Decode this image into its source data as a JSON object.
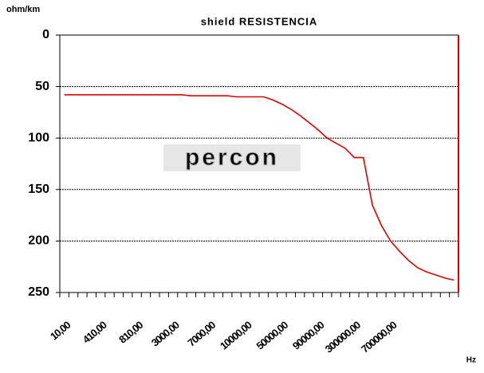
{
  "chart_data": {
    "type": "line",
    "title": "shield RESISTENCIA",
    "y_label": "ohm/km",
    "x_label": "Hz",
    "watermark": "percon",
    "categories": [
      "10,00",
      null,
      null,
      null,
      "410,00",
      null,
      null,
      null,
      "810,00",
      null,
      null,
      null,
      "3000,00",
      null,
      null,
      null,
      "7000,00",
      null,
      null,
      null,
      "10000,00",
      null,
      null,
      null,
      "50000,00",
      null,
      null,
      null,
      "90000,00",
      null,
      null,
      null,
      "300000,00",
      null,
      null,
      null,
      "700000,00",
      null,
      null,
      null,
      null,
      null,
      null,
      null
    ],
    "values": [
      58,
      58,
      58,
      58,
      58,
      58,
      58,
      58,
      58,
      58,
      58,
      58,
      58,
      58,
      59,
      59,
      59,
      59,
      59,
      60,
      60,
      60,
      60,
      63,
      67,
      72,
      78,
      85,
      92,
      100,
      105,
      110,
      119,
      119,
      165,
      185,
      200,
      210,
      219,
      226,
      230,
      233,
      236,
      238
    ],
    "color": "#e00000",
    "ylim": [
      250,
      0
    ],
    "yticks": [
      0,
      50,
      100,
      150,
      200,
      250
    ],
    "grid": true
  }
}
